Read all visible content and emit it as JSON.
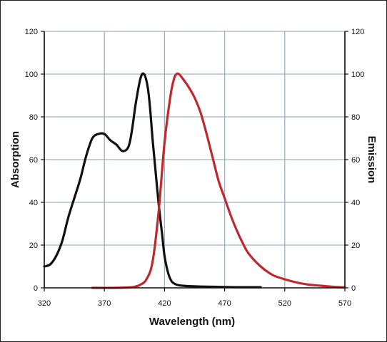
{
  "chart_data": {
    "type": "line",
    "title": "",
    "xlabel": "Wavelength (nm)",
    "ylabel": "Absorption",
    "y2label": "Emission",
    "xlim": [
      320,
      570
    ],
    "ylim": [
      0,
      120
    ],
    "y2lim": [
      0,
      120
    ],
    "xticks": [
      320,
      370,
      420,
      470,
      520,
      570
    ],
    "yticks": [
      0,
      20,
      40,
      60,
      80,
      100,
      120
    ],
    "grid": true,
    "legend": "none",
    "colors": {
      "grid": "#9fb3bf",
      "absorption": "#111111",
      "emission": "#c0282e",
      "axis": "#111111"
    },
    "series": [
      {
        "axis": "left",
        "x": [
          320,
          325,
          330,
          335,
          340,
          345,
          350,
          355,
          360,
          365,
          370,
          375,
          380,
          385,
          390,
          393,
          396,
          400,
          403,
          406,
          408,
          410,
          412,
          415,
          418,
          420,
          423,
          426,
          430,
          435,
          440,
          450,
          460,
          470,
          480,
          490,
          500
        ],
        "y": [
          10,
          11,
          15,
          22,
          33,
          42,
          51,
          62,
          70,
          72,
          72,
          69,
          67,
          64,
          66,
          74,
          86,
          98,
          100,
          94,
          84,
          70,
          58,
          40,
          25,
          15,
          7,
          3,
          1.5,
          1,
          0.8,
          0.6,
          0.5,
          0.4,
          0.3,
          0.3,
          0.3
        ]
      },
      {
        "axis": "right",
        "x": [
          360,
          380,
          390,
          395,
          400,
          405,
          410,
          415,
          420,
          425,
          428,
          430,
          432,
          435,
          440,
          445,
          450,
          455,
          460,
          465,
          470,
          475,
          480,
          485,
          490,
          500,
          510,
          520,
          530,
          540,
          550,
          560,
          570
        ],
        "y": [
          0,
          0,
          0.2,
          0.5,
          1.5,
          4,
          12,
          35,
          68,
          90,
          98,
          100,
          100,
          98,
          94,
          89,
          82,
          72,
          61,
          50,
          42,
          34,
          27,
          21,
          16,
          10,
          6,
          4,
          2.5,
          1.5,
          1,
          0.5,
          0.2
        ]
      }
    ]
  }
}
